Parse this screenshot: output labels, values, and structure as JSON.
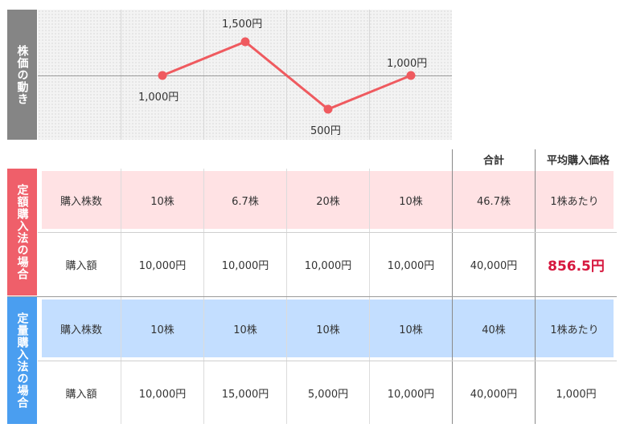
{
  "chart": {
    "side_label": "株価の動き",
    "points": [
      {
        "label": "1,000円",
        "value": 1000
      },
      {
        "label": "1,500円",
        "value": 1500
      },
      {
        "label": "500円",
        "value": 500
      },
      {
        "label": "1,000円",
        "value": 1000
      }
    ],
    "line_color": "#ef5a5f"
  },
  "headers": {
    "total": "合計",
    "avg": "平均購入価格"
  },
  "fixed_amount": {
    "side_label": "定額購入法の場合",
    "accent_color": "#ef5f6a",
    "shares_row": {
      "label": "購入株数",
      "cells": [
        "10株",
        "6.7株",
        "20株",
        "10株"
      ],
      "total": "46.7株",
      "avg": "1株あたり"
    },
    "amount_row": {
      "label": "購入額",
      "cells": [
        "10,000円",
        "10,000円",
        "10,000円",
        "10,000円"
      ],
      "total": "40,000円",
      "avg": "856.5円"
    }
  },
  "fixed_quantity": {
    "side_label": "定量購入法の場合",
    "accent_color": "#4a9ef0",
    "shares_row": {
      "label": "購入株数",
      "cells": [
        "10株",
        "10株",
        "10株",
        "10株"
      ],
      "total": "40株",
      "avg": "1株あたり"
    },
    "amount_row": {
      "label": "購入額",
      "cells": [
        "10,000円",
        "15,000円",
        "5,000円",
        "10,000円"
      ],
      "total": "40,000円",
      "avg": "1,000円"
    }
  }
}
